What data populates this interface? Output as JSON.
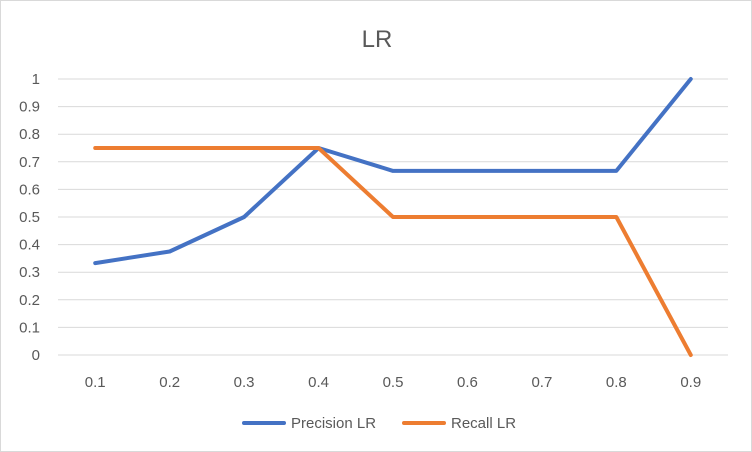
{
  "chart_data": {
    "type": "line",
    "title": "LR",
    "xlabel": "",
    "ylabel": "",
    "categories": [
      "0.1",
      "0.2",
      "0.3",
      "0.4",
      "0.5",
      "0.6",
      "0.7",
      "0.8",
      "0.9"
    ],
    "y_ticks": [
      "0",
      "0.1",
      "0.2",
      "0.3",
      "0.4",
      "0.5",
      "0.6",
      "0.7",
      "0.8",
      "0.9",
      "1"
    ],
    "ylim": [
      0,
      1
    ],
    "grid": true,
    "legend_position": "bottom",
    "series": [
      {
        "name": "Precision LR",
        "color": "#4472c4",
        "values": [
          0.333,
          0.375,
          0.5,
          0.75,
          0.667,
          0.667,
          0.667,
          0.667,
          1.0
        ]
      },
      {
        "name": "Recall LR",
        "color": "#ed7d31",
        "values": [
          0.75,
          0.75,
          0.75,
          0.75,
          0.5,
          0.5,
          0.5,
          0.5,
          0.0
        ]
      }
    ]
  }
}
